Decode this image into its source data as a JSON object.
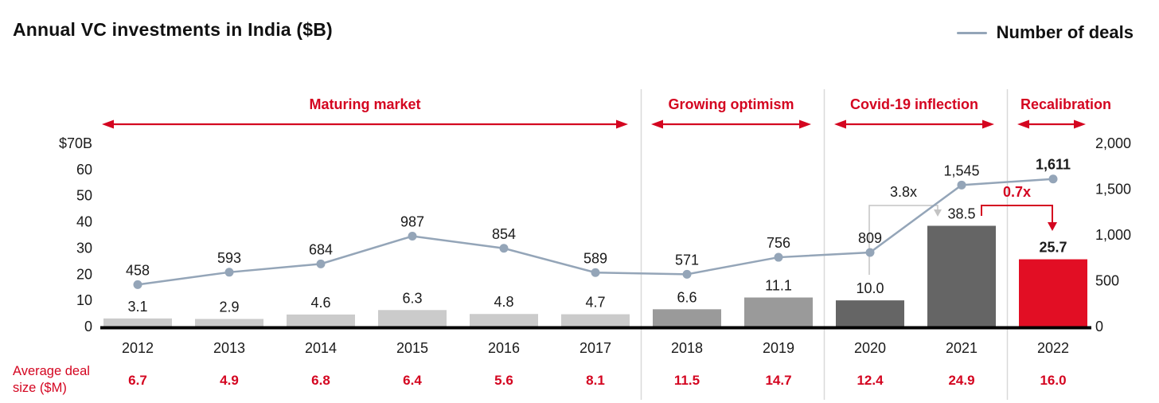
{
  "header": {
    "title": "Annual VC investments in India ($B)",
    "legend": {
      "label": "Number of deals"
    }
  },
  "chart_data": {
    "type": "bar",
    "title": "Annual VC investments in India ($B)",
    "categories": [
      "2012",
      "2013",
      "2014",
      "2015",
      "2016",
      "2017",
      "2018",
      "2019",
      "2020",
      "2021",
      "2022"
    ],
    "series": [
      {
        "name": "Annual VC investments ($B)",
        "type": "bar",
        "values": [
          3.1,
          2.9,
          4.6,
          6.3,
          4.8,
          4.7,
          6.6,
          11.1,
          10.0,
          38.5,
          25.7
        ],
        "labels": [
          "3.1",
          "2.9",
          "4.6",
          "6.3",
          "4.8",
          "4.7",
          "6.6",
          "11.1",
          "10.0",
          "38.5",
          "25.7"
        ]
      },
      {
        "name": "Number of deals",
        "type": "line",
        "values": [
          458,
          593,
          684,
          987,
          854,
          589,
          571,
          756,
          809,
          1545,
          1611
        ],
        "labels": [
          "458",
          "593",
          "684",
          "987",
          "854",
          "589",
          "571",
          "756",
          "809",
          "1,545",
          "1,611"
        ]
      }
    ],
    "emphasized_year": "2022",
    "left_axis": {
      "max": 70,
      "ticks": [
        70,
        60,
        50,
        40,
        30,
        20,
        10,
        0
      ],
      "tick_labels": [
        "$70B",
        "60",
        "50",
        "40",
        "30",
        "20",
        "10",
        "0"
      ]
    },
    "right_axis": {
      "max": 2000,
      "ticks": [
        2000,
        1500,
        1000,
        500,
        0
      ],
      "tick_labels": [
        "2,000",
        "1,500",
        "1,000",
        "500",
        "0"
      ]
    },
    "bar_color_by_year": [
      "light",
      "light",
      "light",
      "light",
      "light",
      "light",
      "medium",
      "medium",
      "dark",
      "dark",
      "red"
    ],
    "phases": [
      {
        "label": "Maturing market",
        "from": "2012",
        "to": "2017"
      },
      {
        "label": "Growing optimism",
        "from": "2018",
        "to": "2019"
      },
      {
        "label": "Covid-19 inflection",
        "from": "2020",
        "to": "2021"
      },
      {
        "label": "Recalibration",
        "from": "2022",
        "to": "2022"
      }
    ],
    "annotations": [
      {
        "text": "3.8x",
        "style": "gray",
        "from": "2020",
        "to": "2021"
      },
      {
        "text": "0.7x",
        "style": "red",
        "from": "2021",
        "to": "2022"
      }
    ],
    "average_deal_size": {
      "label_line1": "Average deal",
      "label_line2": "size ($M)",
      "values": [
        "6.7",
        "4.9",
        "6.8",
        "6.4",
        "5.6",
        "8.1",
        "11.5",
        "14.7",
        "12.4",
        "24.9",
        "16.0"
      ]
    },
    "grid": false,
    "legend_position": "top-right"
  },
  "colors": {
    "red": "#d40520",
    "bar_red": "#e20e24",
    "bar_light": "#cbcbcb",
    "bar_medium": "#9a9a9a",
    "bar_dark": "#656565",
    "line": "#94a5b8",
    "divider": "#d9d9d9",
    "bracket_gray": "#c3c3c3",
    "text": "#1a1a1a"
  }
}
